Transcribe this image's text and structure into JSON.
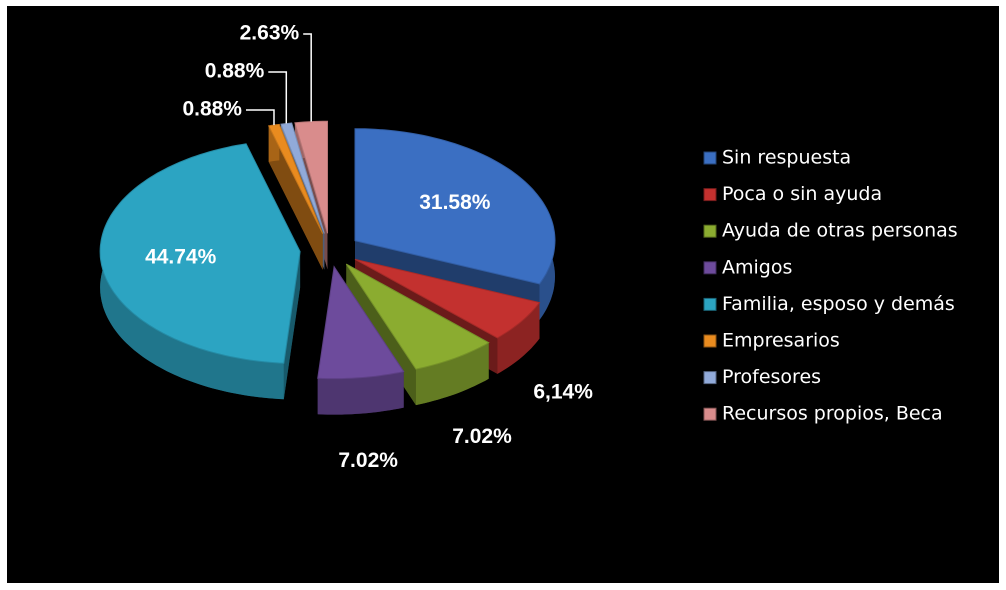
{
  "chart_data": {
    "type": "pie",
    "categories": [
      "Sin respuesta",
      "Poca o sin ayuda",
      "Ayuda de otras personas",
      "Amigos",
      "Familia, esposo y demás",
      "Empresarios",
      "Profesores",
      "Recursos propios, Beca"
    ],
    "values": [
      31.58,
      6.14,
      7.02,
      7.02,
      44.74,
      0.88,
      0.88,
      2.63
    ],
    "value_labels": [
      "31.58%",
      "6,14%",
      "7.02%",
      "7.02%",
      "44.74%",
      "0.88%",
      "0.88%",
      "2.63%"
    ],
    "colors": [
      "#3b6fc2",
      "#c3312f",
      "#8bac30",
      "#6d4b9c",
      "#2ca4c2",
      "#e98b1f",
      "#91aad9",
      "#d98c8c"
    ],
    "legend": "right"
  }
}
